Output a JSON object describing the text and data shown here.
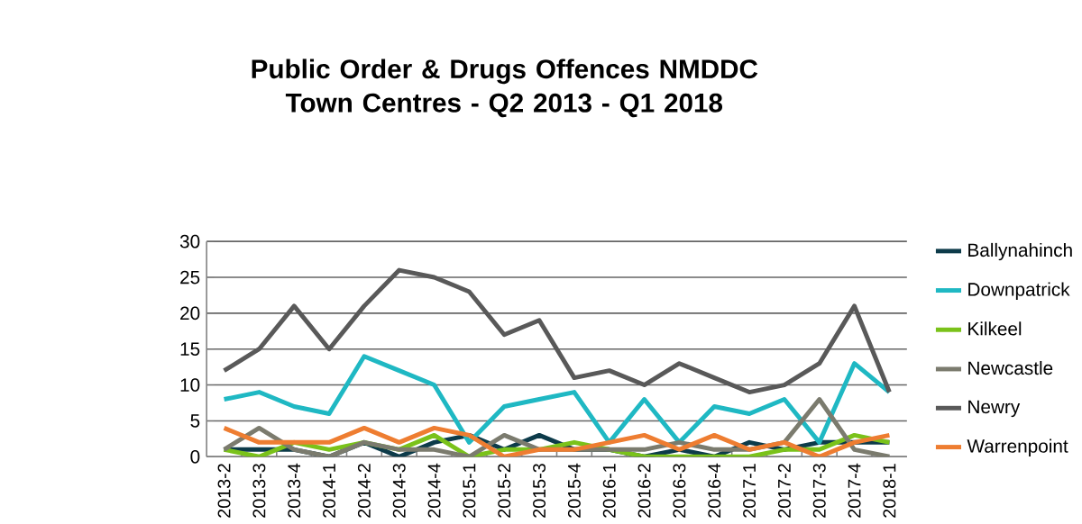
{
  "chart_data": {
    "type": "line",
    "title": "Public Order & Drugs Offences NMDDC Town Centres - Q2 2013 - Q1 2018",
    "categories": [
      "2013-2",
      "2013-3",
      "2013-4",
      "2014-1",
      "2014-2",
      "2014-3",
      "2014-4",
      "2015-1",
      "2015-2",
      "2015-3",
      "2015-4",
      "2016-1",
      "2016-2",
      "2016-3",
      "2016-4",
      "2017-1",
      "2017-2",
      "2017-3",
      "2017-4",
      "2018-1"
    ],
    "series": [
      {
        "name": "Ballynahinch",
        "color": "#0d3b4a",
        "values": [
          1,
          1,
          1,
          0,
          2,
          0,
          2,
          3,
          1,
          3,
          1,
          1,
          0,
          1,
          0,
          2,
          1,
          2,
          2,
          2
        ]
      },
      {
        "name": "Downpatrick",
        "color": "#1fb8c3",
        "values": [
          8,
          9,
          7,
          6,
          14,
          12,
          10,
          2,
          7,
          8,
          9,
          2,
          8,
          2,
          7,
          6,
          8,
          2,
          13,
          9
        ]
      },
      {
        "name": "Kilkeel",
        "color": "#7ac21a",
        "values": [
          1,
          0,
          2,
          1,
          2,
          1,
          3,
          0,
          1,
          1,
          2,
          1,
          0,
          0,
          0,
          0,
          1,
          1,
          3,
          2
        ]
      },
      {
        "name": "Newcastle",
        "color": "#7b7b6e",
        "values": [
          1,
          4,
          1,
          0,
          2,
          1,
          1,
          0,
          3,
          1,
          1,
          1,
          1,
          2,
          1,
          1,
          2,
          8,
          1,
          0
        ]
      },
      {
        "name": "Newry",
        "color": "#595959",
        "values": [
          12,
          15,
          21,
          15,
          21,
          26,
          25,
          23,
          17,
          19,
          11,
          12,
          10,
          13,
          11,
          9,
          10,
          13,
          21,
          9
        ]
      },
      {
        "name": "Warrenpoint",
        "color": "#ee7d31",
        "values": [
          4,
          2,
          2,
          2,
          4,
          2,
          4,
          3,
          0,
          1,
          1,
          2,
          3,
          1,
          3,
          1,
          2,
          0,
          2,
          3
        ]
      }
    ],
    "ylim": [
      0,
      30
    ],
    "yticks": [
      0,
      5,
      10,
      15,
      20,
      25,
      30
    ],
    "grid": "y",
    "legend": "right",
    "marker": "none",
    "line_style": "solid"
  }
}
